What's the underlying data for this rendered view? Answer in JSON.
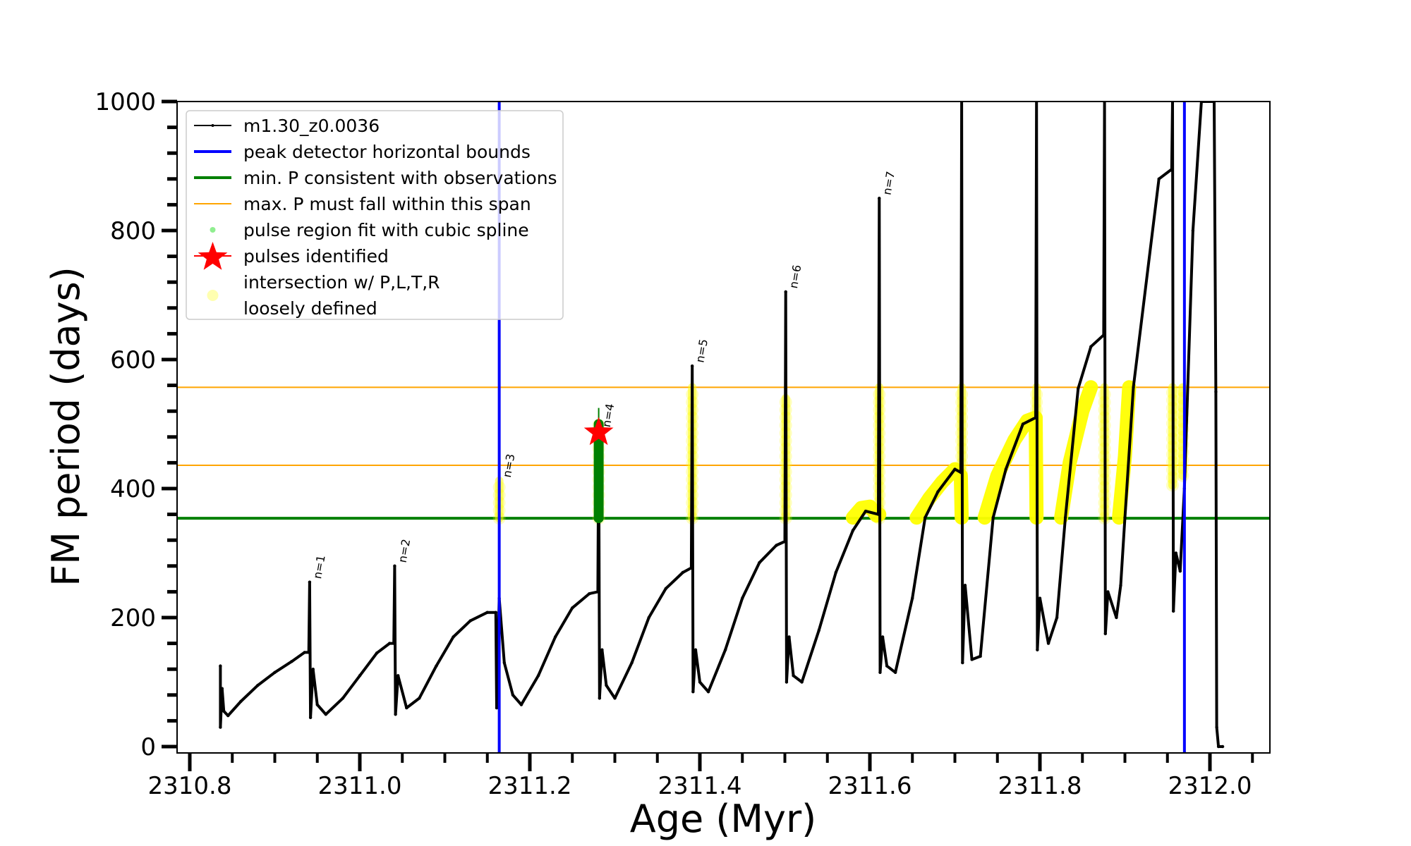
{
  "chart_data": {
    "type": "line",
    "title": "",
    "xlabel": "Age (Myr)",
    "ylabel": "FM period (days)",
    "xlim": [
      2310.784,
      2312.07
    ],
    "ylim": [
      -10,
      1000
    ],
    "xticks": [
      2310.8,
      2311.0,
      2311.2,
      2311.4,
      2311.6,
      2311.8,
      2312.0
    ],
    "xtick_labels": [
      "2310.8",
      "2311.0",
      "2311.2",
      "2311.4",
      "2311.6",
      "2311.8",
      "2312.0"
    ],
    "x_minor_step": 0.05,
    "yticks": [
      0,
      200,
      400,
      600,
      800,
      1000
    ],
    "ytick_labels": [
      "0",
      "200",
      "400",
      "600",
      "800",
      "1000"
    ],
    "y_minor_step": 40,
    "grid": false,
    "legend": {
      "position": "top-left",
      "entries": [
        {
          "label": "m1.30_z0.0036",
          "marker": "line-dot",
          "color": "#000000"
        },
        {
          "label": "peak detector horizontal bounds",
          "marker": "line",
          "color": "#0000ff"
        },
        {
          "label": "min. P consistent with observations",
          "marker": "line",
          "color": "#008000"
        },
        {
          "label": "max. P must fall within this span",
          "marker": "thin-line",
          "color": "#ffa500"
        },
        {
          "label": "pulse region fit with cubic spline",
          "marker": "dot",
          "color": "#90ee90"
        },
        {
          "label": "pulses identified",
          "marker": "star",
          "color": "#ff0000"
        },
        {
          "label": "intersection w/ P,L,T,R",
          "label2": "loosely defined",
          "marker": "circle",
          "color": "#ffffb0"
        }
      ]
    },
    "colors": {
      "series": "#000000",
      "bounds": "#0000ff",
      "min_p": "#008000",
      "max_p_span": "#ffa500",
      "spline": "#008000",
      "star": "#ff0000",
      "intersection": "#ffff00"
    },
    "vertical_lines": [
      {
        "name": "peak detector horizontal bounds",
        "x": 2311.164
      },
      {
        "name": "peak detector horizontal bounds",
        "x": 2311.97
      }
    ],
    "horizontal_lines": [
      {
        "name": "min. P consistent with observations",
        "y": 354
      },
      {
        "name": "max. P span lower",
        "y": 436
      },
      {
        "name": "max. P span upper",
        "y": 557
      }
    ],
    "series": [
      {
        "name": "m1.30_z0.0036",
        "points": [
          [
            2310.836,
            125
          ],
          [
            2310.836,
            30
          ],
          [
            2310.838,
            90
          ],
          [
            2310.84,
            55
          ],
          [
            2310.845,
            48
          ],
          [
            2310.86,
            70
          ],
          [
            2310.88,
            95
          ],
          [
            2310.9,
            115
          ],
          [
            2310.92,
            132
          ],
          [
            2310.935,
            146
          ],
          [
            2310.94,
            146
          ],
          [
            2310.941,
            255
          ],
          [
            2310.942,
            45
          ],
          [
            2310.945,
            120
          ],
          [
            2310.95,
            65
          ],
          [
            2310.96,
            50
          ],
          [
            2310.98,
            75
          ],
          [
            2311.0,
            110
          ],
          [
            2311.02,
            145
          ],
          [
            2311.035,
            160
          ],
          [
            2311.04,
            160
          ],
          [
            2311.041,
            280
          ],
          [
            2311.042,
            50
          ],
          [
            2311.045,
            110
          ],
          [
            2311.055,
            60
          ],
          [
            2311.07,
            75
          ],
          [
            2311.09,
            125
          ],
          [
            2311.11,
            170
          ],
          [
            2311.13,
            195
          ],
          [
            2311.15,
            208
          ],
          [
            2311.16,
            208
          ],
          [
            2311.161,
            60
          ],
          [
            2311.164,
            230
          ],
          [
            2311.17,
            130
          ],
          [
            2311.18,
            80
          ],
          [
            2311.19,
            65
          ],
          [
            2311.21,
            110
          ],
          [
            2311.23,
            170
          ],
          [
            2311.25,
            215
          ],
          [
            2311.27,
            237
          ],
          [
            2311.28,
            240
          ],
          [
            2311.281,
            490
          ],
          [
            2311.282,
            75
          ],
          [
            2311.285,
            150
          ],
          [
            2311.29,
            95
          ],
          [
            2311.3,
            75
          ],
          [
            2311.32,
            130
          ],
          [
            2311.34,
            200
          ],
          [
            2311.36,
            245
          ],
          [
            2311.38,
            270
          ],
          [
            2311.39,
            277
          ],
          [
            2311.391,
            590
          ],
          [
            2311.392,
            85
          ],
          [
            2311.395,
            150
          ],
          [
            2311.4,
            100
          ],
          [
            2311.41,
            85
          ],
          [
            2311.43,
            150
          ],
          [
            2311.45,
            230
          ],
          [
            2311.47,
            285
          ],
          [
            2311.49,
            312
          ],
          [
            2311.5,
            318
          ],
          [
            2311.501,
            705
          ],
          [
            2311.502,
            100
          ],
          [
            2311.505,
            170
          ],
          [
            2311.51,
            110
          ],
          [
            2311.52,
            100
          ],
          [
            2311.54,
            180
          ],
          [
            2311.56,
            270
          ],
          [
            2311.58,
            335
          ],
          [
            2311.595,
            365
          ],
          [
            2311.61,
            360
          ],
          [
            2311.611,
            850
          ],
          [
            2311.612,
            115
          ],
          [
            2311.615,
            170
          ],
          [
            2311.62,
            125
          ],
          [
            2311.63,
            115
          ],
          [
            2311.65,
            230
          ],
          [
            2311.665,
            355
          ],
          [
            2311.68,
            395
          ],
          [
            2311.7,
            430
          ],
          [
            2311.707,
            425
          ],
          [
            2311.708,
            1000
          ],
          [
            2311.709,
            130
          ],
          [
            2311.712,
            250
          ],
          [
            2311.72,
            135
          ],
          [
            2311.73,
            140
          ],
          [
            2311.745,
            355
          ],
          [
            2311.76,
            430
          ],
          [
            2311.78,
            500
          ],
          [
            2311.795,
            510
          ],
          [
            2311.796,
            1000
          ],
          [
            2311.797,
            150
          ],
          [
            2311.8,
            230
          ],
          [
            2311.81,
            160
          ],
          [
            2311.82,
            200
          ],
          [
            2311.83,
            355
          ],
          [
            2311.845,
            555
          ],
          [
            2311.86,
            620
          ],
          [
            2311.875,
            638
          ],
          [
            2311.876,
            1000
          ],
          [
            2311.877,
            175
          ],
          [
            2311.88,
            240
          ],
          [
            2311.89,
            200
          ],
          [
            2311.895,
            250
          ],
          [
            2311.9,
            355
          ],
          [
            2311.91,
            557
          ],
          [
            2311.94,
            880
          ],
          [
            2311.955,
            895
          ],
          [
            2311.956,
            1000
          ],
          [
            2311.957,
            210
          ],
          [
            2311.96,
            300
          ],
          [
            2311.965,
            272
          ],
          [
            2311.97,
            400
          ],
          [
            2311.98,
            800
          ],
          [
            2311.99,
            1000
          ],
          [
            2312.005,
            1000
          ],
          [
            2312.007,
            550
          ],
          [
            2312.008,
            30
          ],
          [
            2312.01,
            0
          ],
          [
            2312.015,
            0
          ]
        ]
      }
    ],
    "intersection_regions": [
      {
        "x": 2311.164,
        "y": [
          354,
          412
        ]
      },
      {
        "x": 2311.281,
        "y": [
          354,
          500
        ]
      },
      {
        "x": 2311.391,
        "y": [
          354,
          557
        ]
      },
      {
        "x": 2311.501,
        "y": [
          354,
          540
        ]
      },
      {
        "x": 2311.611,
        "y": [
          354,
          557
        ]
      },
      {
        "x": 2311.708,
        "y": [
          354,
          557
        ]
      },
      {
        "x": 2311.796,
        "y": [
          354,
          557
        ]
      },
      {
        "x": 2311.876,
        "y": [
          354,
          557
        ]
      },
      {
        "x": 2311.956,
        "y": [
          405,
          557
        ]
      },
      {
        "x": 2311.968,
        "y": [
          420,
          557
        ]
      }
    ],
    "intersection_arcs": [
      {
        "points": [
          [
            2311.58,
            355
          ],
          [
            2311.59,
            370
          ],
          [
            2311.6,
            372
          ],
          [
            2311.608,
            358
          ],
          [
            2311.611,
            360
          ]
        ]
      },
      {
        "points": [
          [
            2311.655,
            355
          ],
          [
            2311.67,
            385
          ],
          [
            2311.685,
            410
          ],
          [
            2311.7,
            430
          ],
          [
            2311.707,
            420
          ],
          [
            2311.708,
            355
          ]
        ]
      },
      {
        "points": [
          [
            2311.735,
            355
          ],
          [
            2311.75,
            420
          ],
          [
            2311.77,
            475
          ],
          [
            2311.785,
            505
          ],
          [
            2311.795,
            510
          ],
          [
            2311.796,
            355
          ]
        ]
      },
      {
        "points": [
          [
            2311.825,
            355
          ],
          [
            2311.835,
            440
          ],
          [
            2311.85,
            520
          ],
          [
            2311.86,
            557
          ]
        ]
      },
      {
        "points": [
          [
            2311.893,
            355
          ],
          [
            2311.9,
            450
          ],
          [
            2311.905,
            557
          ]
        ]
      }
    ],
    "spline_fit": {
      "x": 2311.281,
      "y": [
        354,
        500
      ],
      "tip": 525
    },
    "pulse_star": {
      "x": 2311.281,
      "y": 487
    },
    "annotations": [
      {
        "text": "n=1",
        "x": 2310.941,
        "y": 255
      },
      {
        "text": "n=2",
        "x": 2311.041,
        "y": 280
      },
      {
        "text": "n=3",
        "x": 2311.164,
        "y": 412
      },
      {
        "text": "n=4",
        "x": 2311.281,
        "y": 490
      },
      {
        "text": "n=5",
        "x": 2311.391,
        "y": 590
      },
      {
        "text": "n=6",
        "x": 2311.501,
        "y": 705
      },
      {
        "text": "n=7",
        "x": 2311.611,
        "y": 850
      }
    ]
  }
}
